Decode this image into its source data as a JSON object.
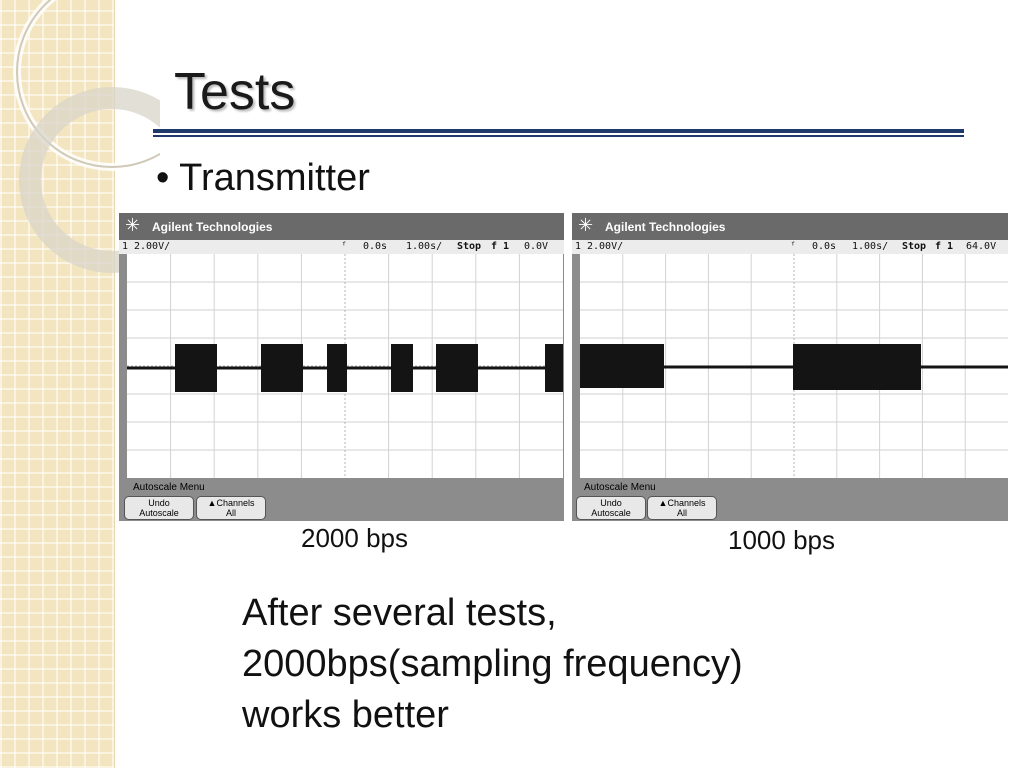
{
  "slide": {
    "title": "Tests",
    "bullet": "• Transmitter",
    "note_lines": [
      "After several tests,",
      "2000bps(sampling frequency)",
      "works better"
    ]
  },
  "scopes": [
    {
      "brand": "Agilent Technologies",
      "channel": "1",
      "volts_per_div": "2.00V/",
      "delay": "0.0s",
      "time_per_div": "1.00s/",
      "run_state": "Stop",
      "trigger": "f 1",
      "trigger_level": "0.0V",
      "menu_title": "Autoscale  Menu",
      "buttons": [
        [
          "Undo",
          "Autoscale"
        ],
        [
          "▲Channels",
          "All"
        ]
      ],
      "caption": "2000 bps"
    },
    {
      "brand": "Agilent Technologies",
      "channel": "1",
      "volts_per_div": "2.00V/",
      "delay": "0.0s",
      "time_per_div": "1.00s/",
      "run_state": "Stop",
      "trigger": "f 1",
      "trigger_level": "64.0V",
      "menu_title": "Autoscale  Menu",
      "buttons": [
        [
          "Undo",
          "Autoscale"
        ],
        [
          "▲Channels",
          "All"
        ]
      ],
      "caption": "1000 bps"
    }
  ],
  "colors": {
    "title_rule": "#1f3a6a",
    "side_strip": "#f3e5bf",
    "scope_frame": "#8c8c8c",
    "trace": "#141414"
  },
  "icons": {
    "brand_logo": "agilent-spark-icon",
    "trigger_marker": "trigger-arrow-icon"
  }
}
